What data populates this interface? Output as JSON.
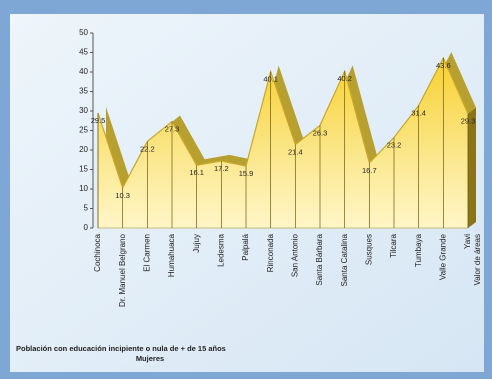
{
  "chart_data": {
    "type": "area",
    "categories": [
      "Cochinoca",
      "Dr. Manuel Belgrano",
      "El Carmen",
      "Humahuaca",
      "Jujuy",
      "Ledesma",
      "Palpalá",
      "Rinconada",
      "San Antonio",
      "Santa Bárbara",
      "Santa Catalina",
      "Susques",
      "Tilcara",
      "Tumbaya",
      "Valle Grande",
      "Yavi"
    ],
    "series": [
      {
        "name": "Valor de áreas",
        "color": "#f0cf3c",
        "values": [
          29.5,
          10.3,
          22.2,
          27.3,
          16.1,
          17.2,
          15.9,
          40.1,
          21.4,
          26.3,
          40.2,
          16.7,
          23.2,
          31.4,
          43.6,
          29.3
        ]
      }
    ],
    "ylim": [
      0,
      50
    ],
    "yticks": [
      0,
      5,
      10,
      15,
      20,
      25,
      30,
      35,
      40,
      45,
      50
    ],
    "title": "Población con educación incipiente o nula de + de 15 años",
    "subtitle": "Mujeres"
  }
}
